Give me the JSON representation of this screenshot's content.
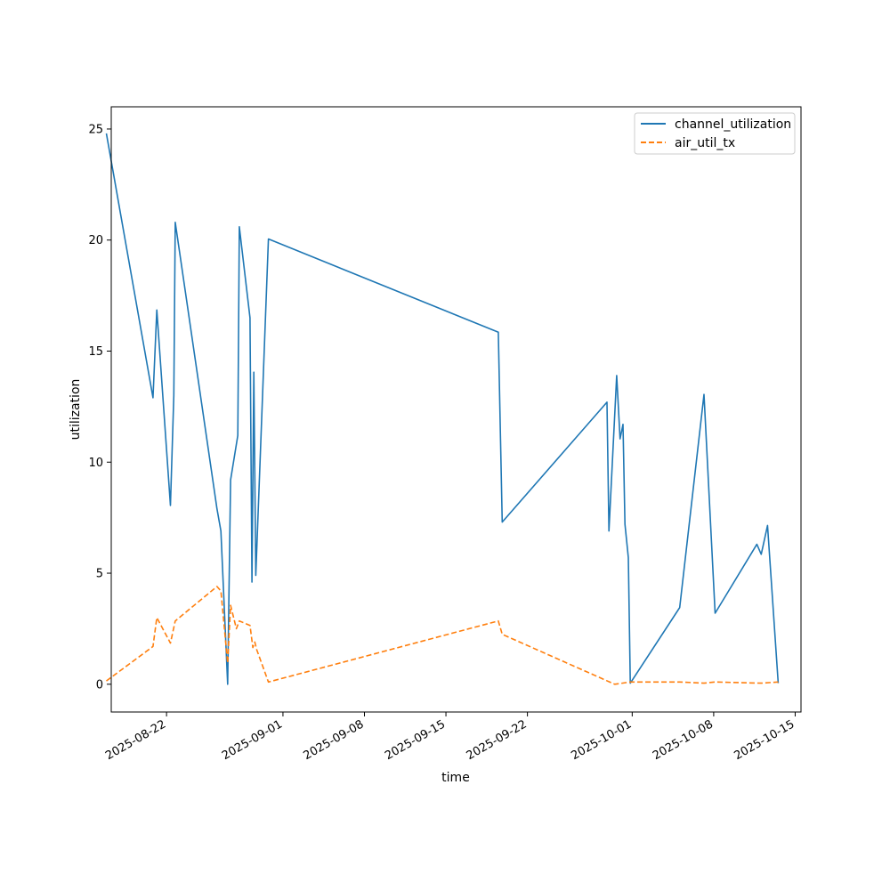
{
  "chart_data": {
    "type": "line",
    "title": "",
    "xlabel": "time",
    "ylabel": "utilization",
    "xlim": [
      "2025-08-17T06:00",
      "2025-10-15T12:00"
    ],
    "ylim": [
      -1.25,
      26.0
    ],
    "x_ticks": [
      "2025-08-22",
      "2025-09-01",
      "2025-09-08",
      "2025-09-15",
      "2025-09-22",
      "2025-10-01",
      "2025-10-08",
      "2025-10-15"
    ],
    "y_ticks": [
      0,
      5,
      10,
      15,
      20,
      25
    ],
    "grid": false,
    "legend_position": "top-right",
    "series": [
      {
        "name": "channel_utilization",
        "color": "#1f77b4",
        "style": "solid",
        "points": [
          [
            "2025-08-16T20:00",
            24.8
          ],
          [
            "2025-08-20T20:00",
            12.9
          ],
          [
            "2025-08-21T04:00",
            16.85
          ],
          [
            "2025-08-22T08:00",
            8.05
          ],
          [
            "2025-08-22T15:00",
            13.0
          ],
          [
            "2025-08-22T18:00",
            20.8
          ],
          [
            "2025-08-26T08:00",
            7.9
          ],
          [
            "2025-08-26T16:00",
            6.9
          ],
          [
            "2025-08-27T06:00",
            0.0
          ],
          [
            "2025-08-27T12:00",
            9.2
          ],
          [
            "2025-08-28T03:00",
            11.2
          ],
          [
            "2025-08-28T06:00",
            20.6
          ],
          [
            "2025-08-29T04:00",
            16.5
          ],
          [
            "2025-08-29T08:00",
            4.6
          ],
          [
            "2025-08-29T12:00",
            14.05
          ],
          [
            "2025-08-29T16:00",
            4.9
          ],
          [
            "2025-08-30T18:00",
            20.05
          ],
          [
            "2025-09-19T12:00",
            15.85
          ],
          [
            "2025-09-19T20:00",
            7.3
          ],
          [
            "2025-09-28T20:00",
            12.7
          ],
          [
            "2025-09-29T00:00",
            6.9
          ],
          [
            "2025-09-29T16:00",
            13.9
          ],
          [
            "2025-09-29T23:00",
            11.05
          ],
          [
            "2025-09-30T05:00",
            11.7
          ],
          [
            "2025-09-30T09:00",
            7.2
          ],
          [
            "2025-09-30T16:00",
            5.7
          ],
          [
            "2025-09-30T20:00",
            0.05
          ],
          [
            "2025-10-05T02:00",
            3.45
          ],
          [
            "2025-10-07T04:00",
            13.05
          ],
          [
            "2025-10-08T03:00",
            3.2
          ],
          [
            "2025-10-11T17:00",
            6.3
          ],
          [
            "2025-10-12T02:00",
            5.85
          ],
          [
            "2025-10-12T15:00",
            7.15
          ],
          [
            "2025-10-13T13:00",
            0.05
          ]
        ]
      },
      {
        "name": "air_util_tx",
        "color": "#ff7f0e",
        "style": "dashed",
        "points": [
          [
            "2025-08-16T20:00",
            0.15
          ],
          [
            "2025-08-20T20:00",
            1.7
          ],
          [
            "2025-08-21T04:00",
            3.0
          ],
          [
            "2025-08-22T08:00",
            1.85
          ],
          [
            "2025-08-22T18:00",
            2.85
          ],
          [
            "2025-08-26T08:00",
            4.4
          ],
          [
            "2025-08-26T16:00",
            4.2
          ],
          [
            "2025-08-27T06:00",
            0.95
          ],
          [
            "2025-08-27T12:00",
            3.55
          ],
          [
            "2025-08-28T00:00",
            2.5
          ],
          [
            "2025-08-28T06:00",
            2.85
          ],
          [
            "2025-08-29T04:00",
            2.65
          ],
          [
            "2025-08-29T10:00",
            1.65
          ],
          [
            "2025-08-29T14:00",
            1.9
          ],
          [
            "2025-08-29T18:00",
            1.55
          ],
          [
            "2025-08-30T18:00",
            0.1
          ],
          [
            "2025-09-19T12:00",
            2.85
          ],
          [
            "2025-09-19T20:00",
            2.25
          ],
          [
            "2025-09-29T12:00",
            0.0
          ],
          [
            "2025-09-30T20:00",
            0.1
          ],
          [
            "2025-10-05T02:00",
            0.1
          ],
          [
            "2025-10-07T04:00",
            0.05
          ],
          [
            "2025-10-08T03:00",
            0.1
          ],
          [
            "2025-10-12T02:00",
            0.05
          ],
          [
            "2025-10-13T13:00",
            0.1
          ]
        ]
      }
    ]
  }
}
